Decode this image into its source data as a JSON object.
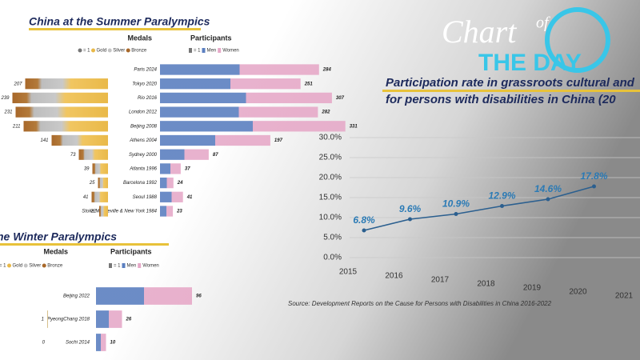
{
  "logo": {
    "chart": "Chart",
    "of": "of",
    "the_day": "THE DAY"
  },
  "source": "Source: Development Reports on the Cause for Persons with Disabilities in China 2016-2022",
  "chart_data": [
    {
      "type": "line",
      "title": [
        "Participation rate in grassroots cultural and",
        "for persons with disabilities in China (20"
      ],
      "categories": [
        "2015",
        "2016",
        "2017",
        "2018",
        "2019",
        "2020",
        "2021"
      ],
      "values": [
        6.8,
        9.6,
        10.9,
        12.9,
        14.6,
        17.8,
        null
      ],
      "value_labels": [
        "6.8%",
        "9.6%",
        "10.9%",
        "12.9%",
        "14.6%",
        "17.8%",
        null
      ],
      "color": "#2b5f8f",
      "ylim": [
        0,
        30
      ],
      "yticks": [
        {
          "value": 0,
          "label": "0.0%"
        },
        {
          "value": 5,
          "label": "5.0%"
        },
        {
          "value": 10,
          "label": "10.0%"
        },
        {
          "value": 15,
          "label": "15.0%"
        },
        {
          "value": 20,
          "label": "20.0%"
        },
        {
          "value": 25,
          "label": "25.0%"
        },
        {
          "value": 30,
          "label": "30.0%"
        }
      ],
      "grid": true
    },
    {
      "type": "pictogram-bar",
      "title": "China at the Summer Paralympics",
      "medals_label": "Medals",
      "participants_label": "Participants",
      "medal_legend": [
        "= 1",
        "Gold",
        "Silver",
        "Bronze"
      ],
      "participant_legend": [
        "= 1",
        "Men",
        "Women"
      ],
      "categories": [
        "Paris 2024",
        "Tokyo 2020",
        "Rio 2016",
        "London 2012",
        "Beijing 2008",
        "Athens 2004",
        "Sydney 2000",
        "Atlanta 1996",
        "Barcelona 1992",
        "Seoul 1988",
        "Stoke Mandeville & New York 1984"
      ],
      "medals": [
        null,
        207,
        239,
        231,
        211,
        141,
        73,
        39,
        25,
        41,
        22
      ],
      "participants": [
        284,
        251,
        307,
        282,
        331,
        197,
        87,
        37,
        24,
        41,
        23
      ]
    },
    {
      "type": "pictogram-bar",
      "title": "he Winter Paralympics",
      "medals_label": "Medals",
      "participants_label": "Participants",
      "medal_legend": [
        "= 1",
        "Gold",
        "Silver",
        "Bronze"
      ],
      "participant_legend": [
        "= 1",
        "Men",
        "Women"
      ],
      "categories": [
        "Beijing 2022",
        "PyeongChang 2018",
        "Sochi 2014"
      ],
      "medals": [
        null,
        1,
        0
      ],
      "participants": [
        96,
        26,
        10
      ]
    }
  ]
}
